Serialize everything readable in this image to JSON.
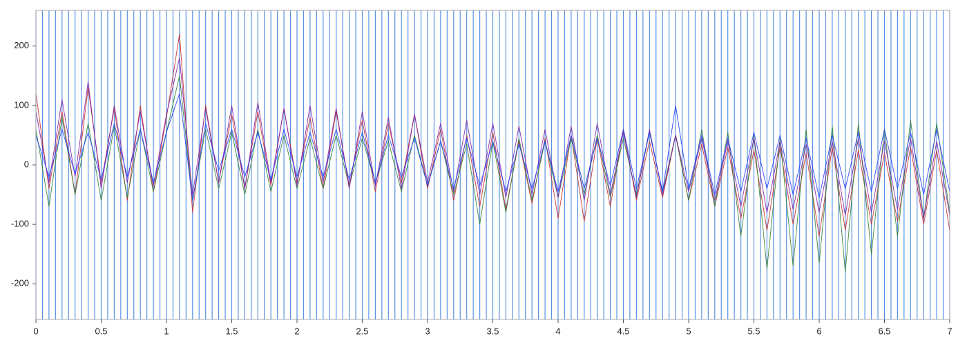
{
  "chart_data": {
    "type": "line",
    "xlim": [
      0,
      7
    ],
    "xticks": [
      0,
      0.5,
      1,
      1.5,
      2,
      2.5,
      3,
      3.5,
      4,
      4.5,
      5,
      5.5,
      6,
      6.5,
      7
    ],
    "ylim": [
      -260,
      260
    ],
    "yticks": [
      -200,
      -100,
      0,
      100,
      200
    ],
    "x": [
      0,
      0.1,
      0.2,
      0.3,
      0.4,
      0.5,
      0.6,
      0.7,
      0.8,
      0.9,
      1,
      1.1,
      1.2,
      1.3,
      1.4,
      1.5,
      1.6,
      1.7,
      1.8,
      1.9,
      2,
      2.1,
      2.2,
      2.3,
      2.4,
      2.5,
      2.6,
      2.7,
      2.8,
      2.9,
      3,
      3.1,
      3.2,
      3.3,
      3.4,
      3.5,
      3.6,
      3.7,
      3.8,
      3.9,
      4,
      4.1,
      4.2,
      4.3,
      4.4,
      4.5,
      4.6,
      4.7,
      4.8,
      4.9,
      5,
      5.1,
      5.2,
      5.3,
      5.4,
      5.5,
      5.6,
      5.7,
      5.8,
      5.9,
      6,
      6.1,
      6.2,
      6.3,
      6.4,
      6.5,
      6.6,
      6.7,
      6.8,
      6.9,
      7
    ],
    "series": [
      {
        "color": "#c62828",
        "values": [
          120,
          -40,
          90,
          -50,
          130,
          -30,
          95,
          -60,
          100,
          -45,
          80,
          220,
          -80,
          100,
          -30,
          85,
          -40,
          90,
          -35,
          95,
          -30,
          80,
          -40,
          90,
          -35,
          75,
          -45,
          70,
          -30,
          85,
          -40,
          60,
          -60,
          50,
          -70,
          55,
          -75,
          40,
          -65,
          45,
          -90,
          50,
          -95,
          45,
          -70,
          60,
          -60,
          40,
          -55,
          50,
          -60,
          35,
          -70,
          30,
          -90,
          25,
          -110,
          30,
          -100,
          20,
          -120,
          30,
          -110,
          25,
          -100,
          20,
          -95,
          30,
          -100,
          25,
          -110
        ]
      },
      {
        "color": "#2e7d32",
        "values": [
          60,
          -70,
          80,
          -50,
          70,
          -60,
          65,
          -55,
          60,
          -45,
          55,
          150,
          -60,
          60,
          -40,
          55,
          -50,
          60,
          -45,
          50,
          -40,
          45,
          -40,
          50,
          -35,
          45,
          -30,
          40,
          -45,
          50,
          -35,
          40,
          -50,
          35,
          -100,
          40,
          -80,
          45,
          -60,
          40,
          -55,
          45,
          -50,
          50,
          -55,
          45,
          -50,
          55,
          -45,
          50,
          -60,
          60,
          -70,
          55,
          -120,
          50,
          -175,
          45,
          -170,
          60,
          -165,
          65,
          -180,
          70,
          -150,
          60,
          -120,
          75,
          -90,
          70,
          -80
        ]
      },
      {
        "color": "#7b1fa2",
        "values": [
          90,
          -30,
          110,
          -20,
          140,
          -40,
          100,
          -30,
          90,
          -35,
          85,
          180,
          -50,
          95,
          -30,
          100,
          -40,
          105,
          -30,
          95,
          -35,
          100,
          -30,
          95,
          -40,
          90,
          -35,
          80,
          -40,
          85,
          -30,
          70,
          -45,
          75,
          -50,
          70,
          -55,
          65,
          -50,
          60,
          -55,
          65,
          -60,
          70,
          -50,
          55,
          -55,
          60,
          -50,
          50,
          -45,
          45,
          -60,
          40,
          -70,
          45,
          -80,
          40,
          -75,
          35,
          -80,
          40,
          -85,
          45,
          -80,
          40,
          -75,
          45,
          -90,
          40,
          -85
        ]
      },
      {
        "color": "#1e3cff",
        "values": [
          50,
          -20,
          60,
          -15,
          55,
          -25,
          70,
          -20,
          60,
          -30,
          55,
          120,
          -60,
          70,
          -10,
          60,
          -20,
          55,
          -25,
          60,
          -20,
          55,
          -20,
          60,
          -25,
          55,
          -30,
          50,
          -20,
          45,
          -35,
          40,
          -40,
          45,
          -35,
          40,
          -45,
          35,
          -40,
          40,
          -45,
          50,
          -40,
          45,
          -35,
          60,
          -40,
          55,
          -45,
          100,
          -40,
          50,
          -50,
          45,
          -45,
          55,
          -40,
          50,
          -50,
          45,
          -55,
          50,
          -40,
          55,
          -45,
          60,
          -40,
          55,
          -50,
          60,
          -45
        ]
      }
    ],
    "events": {
      "color": "#3b7ddd",
      "x": [
        0,
        0.05,
        0.1,
        0.15,
        0.2,
        0.25,
        0.3,
        0.35,
        0.4,
        0.45,
        0.5,
        0.55,
        0.6,
        0.65,
        0.7,
        0.75,
        0.8,
        0.85,
        0.9,
        0.95,
        1,
        1.05,
        1.1,
        1.15,
        1.2,
        1.25,
        1.3,
        1.35,
        1.4,
        1.45,
        1.5,
        1.55,
        1.6,
        1.65,
        1.7,
        1.75,
        1.8,
        1.85,
        1.9,
        1.95,
        2,
        2.05,
        2.1,
        2.15,
        2.2,
        2.25,
        2.3,
        2.35,
        2.4,
        2.45,
        2.5,
        2.55,
        2.6,
        2.65,
        2.7,
        2.75,
        2.8,
        2.85,
        2.9,
        2.95,
        3,
        3.05,
        3.1,
        3.15,
        3.2,
        3.25,
        3.3,
        3.35,
        3.4,
        3.45,
        3.5,
        3.55,
        3.6,
        3.65,
        3.7,
        3.75,
        3.8,
        3.85,
        3.9,
        3.95,
        4,
        4.05,
        4.1,
        4.15,
        4.2,
        4.25,
        4.3,
        4.35,
        4.4,
        4.45,
        4.5,
        4.55,
        4.6,
        4.65,
        4.7,
        4.75,
        4.8,
        4.85,
        4.9,
        4.95,
        5,
        5.05,
        5.1,
        5.15,
        5.2,
        5.25,
        5.3,
        5.35,
        5.4,
        5.45,
        5.5,
        5.55,
        5.6,
        5.65,
        5.7,
        5.75,
        5.8,
        5.85,
        5.9,
        5.95,
        6,
        6.05,
        6.1,
        6.15,
        6.2,
        6.25,
        6.3,
        6.35,
        6.4,
        6.45,
        6.5,
        6.55,
        6.6,
        6.65,
        6.7,
        6.75,
        6.8,
        6.85,
        6.9,
        6.95,
        7
      ]
    }
  }
}
